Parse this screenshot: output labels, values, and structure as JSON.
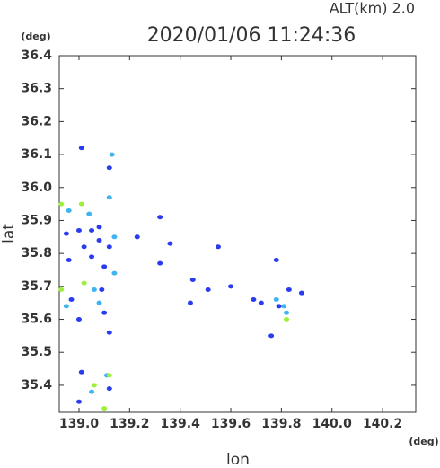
{
  "chart_data": {
    "type": "scatter",
    "title": "2020/01/06 11:24:36",
    "subtitle": "ALT(km) 2.0",
    "y_unit": "(deg)",
    "x_unit": "(deg)",
    "x_label": "lon",
    "y_label": "lat",
    "xlim": [
      138.922,
      140.331
    ],
    "ylim": [
      35.318,
      36.4
    ],
    "xticks": [
      {
        "value": 139,
        "label": "139.0"
      },
      139.2,
      139.4,
      139.6,
      139.8,
      {
        "value": 140,
        "label": "140.0"
      },
      140.2
    ],
    "yticks": [
      35.4,
      35.5,
      35.6,
      35.7,
      35.8,
      35.9,
      {
        "value": 36,
        "label": "36.0"
      },
      36.1,
      36.2,
      36.3,
      36.4
    ],
    "series": [
      {
        "color": "#2a3cf0",
        "x": [
          139.01,
          139.12,
          139.32,
          139.0,
          138.95,
          139.05,
          139.08,
          139.02,
          138.96,
          139.05,
          139.08,
          139.12,
          139.23,
          139.36,
          139.0,
          139.12,
          138.97,
          139.01,
          139.0,
          139.12,
          139.09,
          139.1,
          139.44,
          139.51,
          139.78,
          139.76,
          139.83,
          139.88,
          139.79,
          139.72,
          139.69,
          139.6,
          139.45,
          139.55,
          139.32,
          139.1
        ],
        "y": [
          36.12,
          36.06,
          35.91,
          35.87,
          35.86,
          35.87,
          35.88,
          35.82,
          35.78,
          35.79,
          35.84,
          35.82,
          35.85,
          35.83,
          35.6,
          35.56,
          35.66,
          35.44,
          35.35,
          35.39,
          35.69,
          35.62,
          35.65,
          35.69,
          35.78,
          35.55,
          35.69,
          35.68,
          35.64,
          35.65,
          35.66,
          35.7,
          35.72,
          35.82,
          35.77,
          35.76
        ]
      },
      {
        "color": "#3fb4f0",
        "x": [
          139.13,
          139.12,
          139.04,
          138.96,
          139.06,
          139.08,
          139.81,
          139.82,
          139.78,
          139.14,
          138.95,
          139.11,
          139.05,
          139.14
        ],
        "y": [
          36.1,
          35.97,
          35.92,
          35.93,
          35.69,
          35.65,
          35.64,
          35.62,
          35.66,
          35.74,
          35.64,
          35.43,
          35.38,
          35.85
        ]
      },
      {
        "color": "#9cf03c",
        "x": [
          138.93,
          139.02,
          139.01,
          139.12,
          139.06,
          139.1,
          139.82,
          138.93
        ],
        "y": [
          35.95,
          35.71,
          35.95,
          35.43,
          35.4,
          35.33,
          35.6,
          35.69
        ]
      }
    ]
  }
}
